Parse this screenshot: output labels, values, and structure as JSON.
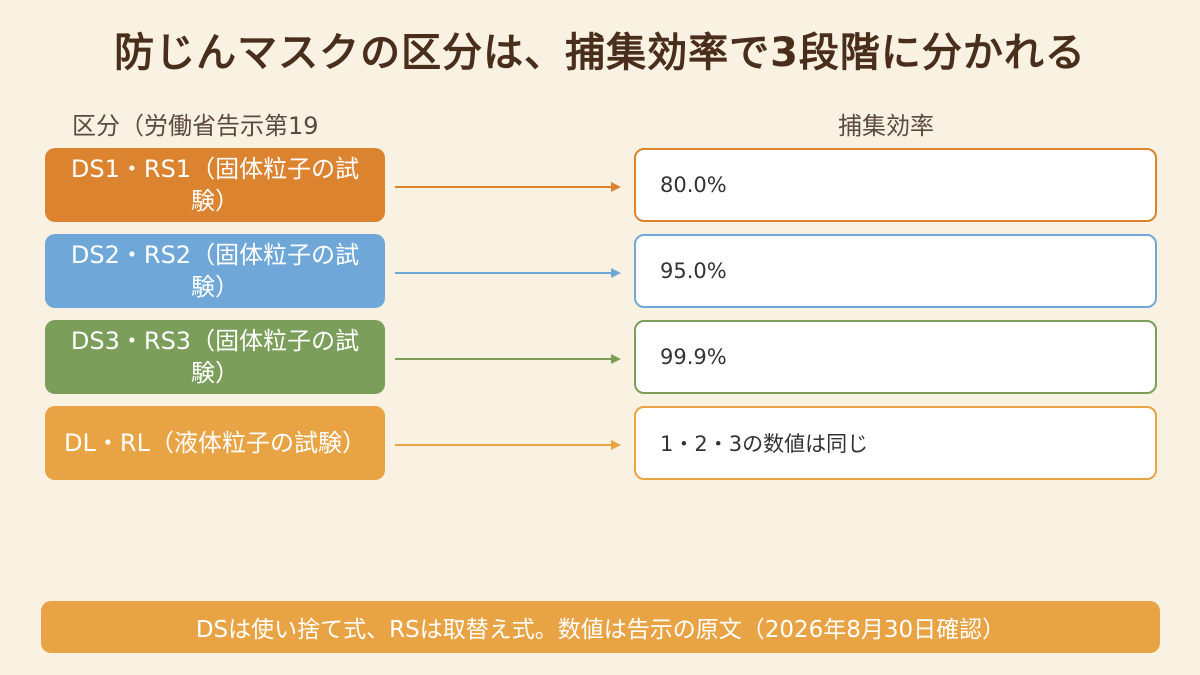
{
  "title": "防じんマスクの区分は、捕集効率で3段階に分かれる",
  "headers": {
    "category": "区分（労働省告示第19",
    "efficiency": "捕集効率"
  },
  "rows": [
    {
      "category": "DS1・RS1（固体粒子の試験）",
      "efficiency": "80.0%",
      "color": "#dc8330",
      "border": "#dc8330",
      "arrow_color": "#dc8330"
    },
    {
      "category": "DS2・RS2（固体粒子の試験）",
      "efficiency": "95.0%",
      "color": "#6fa8d8",
      "border": "#6fa8d8",
      "arrow_color": "#6fa8d8"
    },
    {
      "category": "DS3・RS3（固体粒子の試験）",
      "efficiency": "99.9%",
      "color": "#7b9e5a",
      "border": "#7b9e5a",
      "arrow_color": "#7b9e5a"
    },
    {
      "category": "DL・RL（液体粒子の試験）",
      "efficiency": "1・2・3の数値は同じ",
      "color": "#e8a444",
      "border": "#e8a444",
      "arrow_color": "#e8a444"
    }
  ],
  "footer": "DSは使い捨て式、RSは取替え式。数値は告示の原文（2026年8月30日確認）"
}
